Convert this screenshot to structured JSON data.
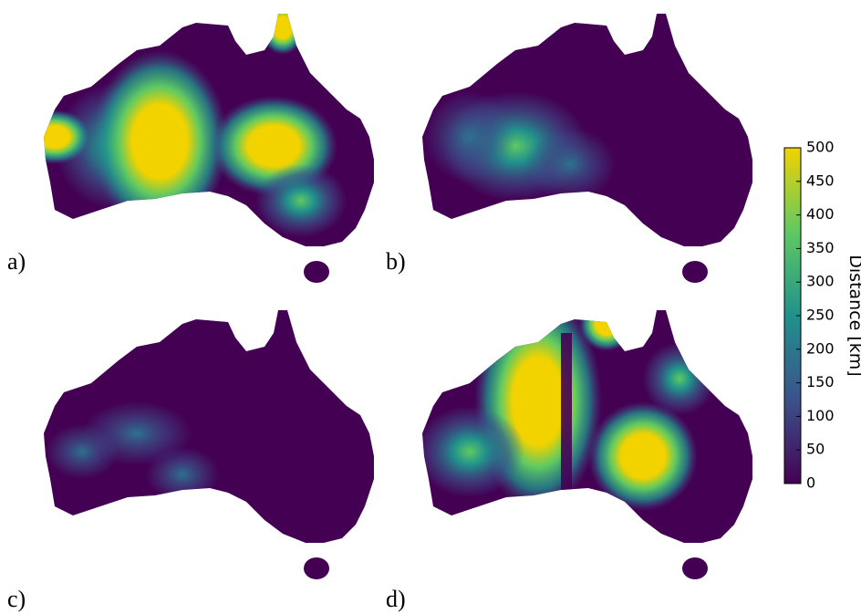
{
  "panels": [
    {
      "label": "a)"
    },
    {
      "label": "b)"
    },
    {
      "label": "c)"
    },
    {
      "label": "d)"
    }
  ],
  "colorbar": {
    "label": "Distance [km]",
    "lim": [
      0,
      500
    ],
    "ticks": [
      0,
      50,
      100,
      150,
      200,
      250,
      300,
      350,
      400,
      450,
      500
    ],
    "colormap": [
      "#440154",
      "#3b528b",
      "#21918c",
      "#5ec962",
      "#f2d300"
    ]
  }
}
